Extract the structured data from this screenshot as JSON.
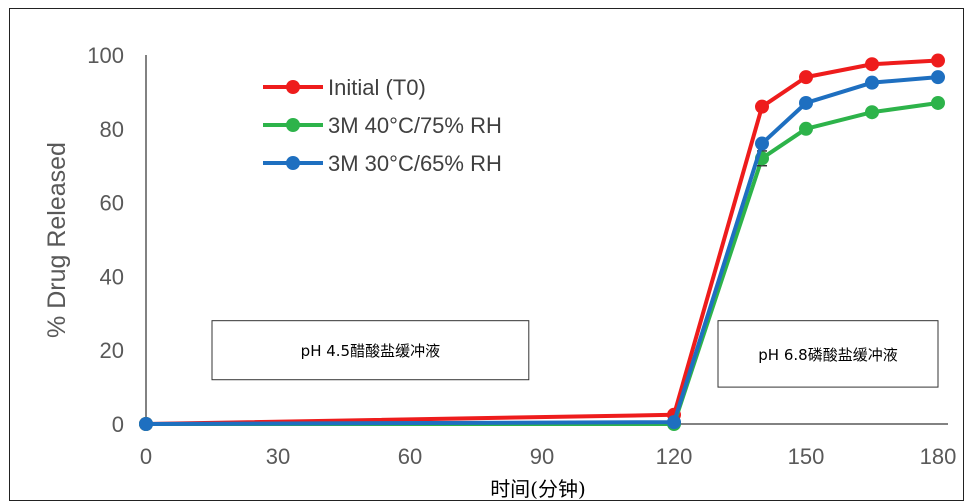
{
  "chart_data": {
    "type": "line",
    "title": "",
    "xlabel": "时间(分钟)",
    "ylabel": "% Drug Released",
    "xlim": [
      0,
      180
    ],
    "ylim": [
      0,
      100
    ],
    "x_ticks": [
      0,
      30,
      60,
      90,
      120,
      150,
      180
    ],
    "y_ticks": [
      0,
      20,
      40,
      60,
      80,
      100
    ],
    "grid": false,
    "legend_position": "top-left",
    "series": [
      {
        "name": "Initial (T0)",
        "color": "#ee1c1c",
        "x": [
          0,
          120,
          140,
          150,
          165,
          180
        ],
        "y": [
          0,
          2.5,
          86,
          94,
          97.5,
          98.5
        ],
        "error": [
          0,
          0,
          0,
          0,
          0,
          0
        ]
      },
      {
        "name": "3M 40°C/75% RH",
        "color": "#2db34a",
        "x": [
          0,
          120,
          140,
          150,
          165,
          180
        ],
        "y": [
          0,
          0,
          72,
          80,
          84.5,
          87
        ],
        "error": [
          0,
          0,
          2,
          0,
          0,
          0
        ]
      },
      {
        "name": "3M 30°C/65% RH",
        "color": "#1e6fc0",
        "x": [
          0,
          120,
          140,
          150,
          165,
          180
        ],
        "y": [
          0,
          0.5,
          76,
          87,
          92.5,
          94
        ],
        "error": [
          0,
          0,
          0,
          0,
          0,
          0
        ]
      }
    ],
    "annotations": [
      {
        "text": "pH 4.5醋酸盐缓冲液",
        "x_range": [
          15,
          87
        ],
        "y_range": [
          12,
          28
        ]
      },
      {
        "text": "pH 6.8磷酸盐缓冲液",
        "x_range": [
          130,
          180
        ],
        "y_range": [
          10,
          28
        ]
      }
    ]
  }
}
